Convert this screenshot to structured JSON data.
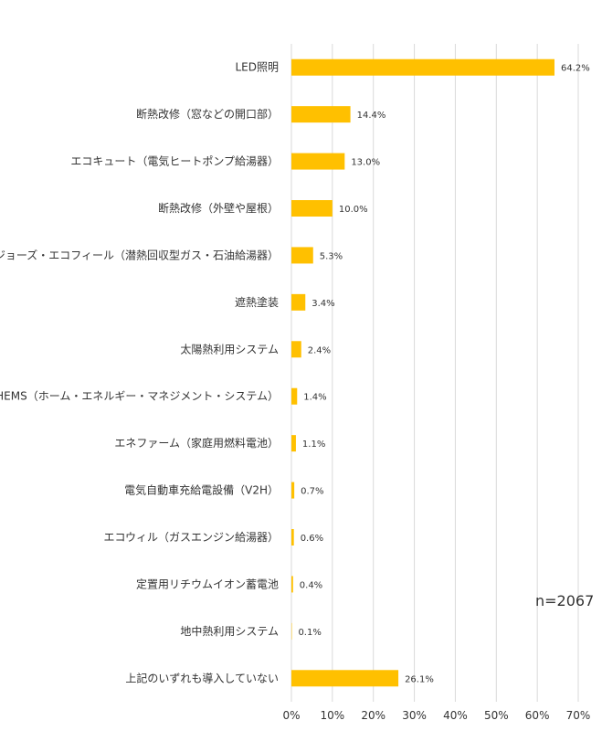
{
  "chart_data": {
    "type": "bar",
    "orientation": "horizontal",
    "categories": [
      "LED照明",
      "断熱改修（窓などの開口部）",
      "エコキュート（電気ヒートポンプ給湯器）",
      "断熱改修（外壁や屋根）",
      "エコジョーズ・エコフィール（潜熱回収型ガス・石油給湯器）",
      "遮熱塗装",
      "太陽熱利用システム",
      "HEMS（ホーム・エネルギー・マネジメント・システム）",
      "エネファーム（家庭用燃料電池）",
      "電気自動車充給電設備（V2H）",
      "エコウィル（ガスエンジン給湯器）",
      "定置用リチウムイオン蓄電池",
      "地中熱利用システム",
      "上記のいずれも導入していない"
    ],
    "values": [
      64.2,
      14.4,
      13.0,
      10.0,
      5.3,
      3.4,
      2.4,
      1.4,
      1.1,
      0.7,
      0.6,
      0.4,
      0.1,
      26.1
    ],
    "value_labels": [
      "64.2%",
      "14.4%",
      "13.0%",
      "10.0%",
      "5.3%",
      "3.4%",
      "2.4%",
      "1.4%",
      "1.1%",
      "0.7%",
      "0.6%",
      "0.4%",
      "0.1%",
      "26.1%"
    ],
    "x_ticks": [
      "0%",
      "10%",
      "20%",
      "30%",
      "40%",
      "50%",
      "60%",
      "70%"
    ],
    "xlim": [
      0,
      70
    ],
    "grid": true,
    "bar_color": "#FFC000",
    "grid_color": "#D9D9D9",
    "annotation": "n=2067"
  }
}
